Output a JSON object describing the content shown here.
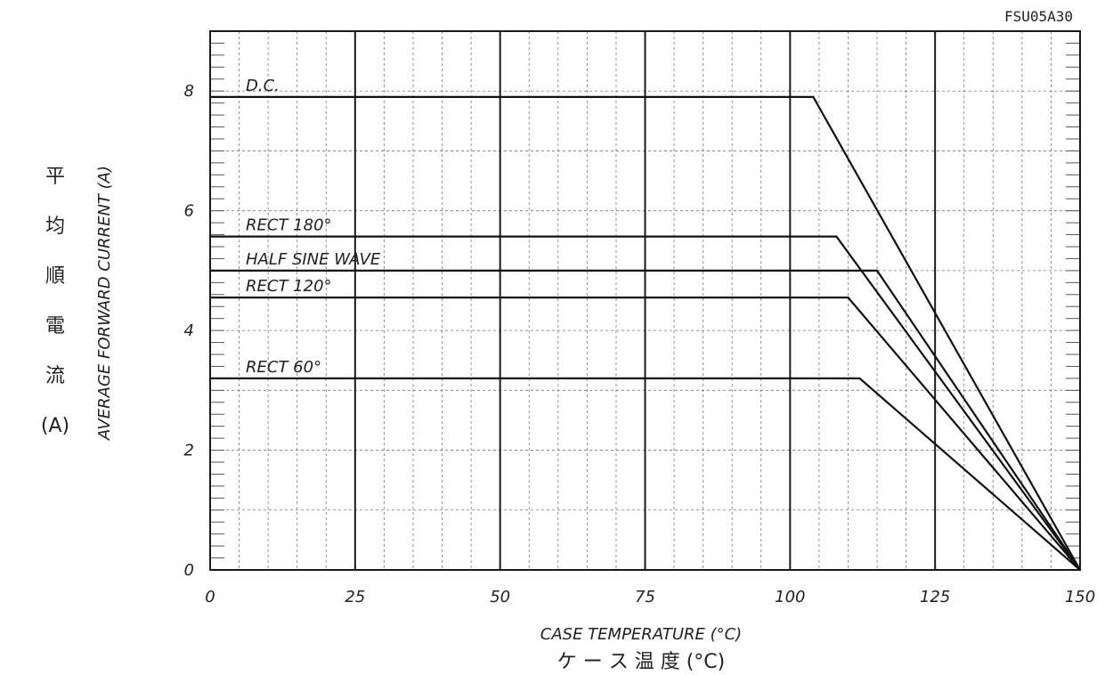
{
  "chart_data": {
    "type": "line",
    "title": "FSU05A30",
    "xlabel": "CASE TEMPERATURE (°C)",
    "xlabel_jp": "ケ ー ス 温 度 (°C)",
    "ylabel": "AVERAGE FORWARD CURRENT (A)",
    "ylabel_jp": [
      "平",
      "均",
      "順",
      "電",
      "流",
      "(A)"
    ],
    "xlim": [
      0,
      150
    ],
    "ylim": [
      0,
      9
    ],
    "xticks": [
      0,
      25,
      50,
      75,
      100,
      125,
      150
    ],
    "yticks": [
      0,
      2,
      4,
      6,
      8
    ],
    "grid": true,
    "series": [
      {
        "name": "D.C.",
        "x": [
          0,
          104,
          150
        ],
        "y": [
          7.9,
          7.9,
          0
        ]
      },
      {
        "name": "RECT 180°",
        "x": [
          0,
          108,
          150
        ],
        "y": [
          5.57,
          5.57,
          0
        ]
      },
      {
        "name": "HALF SINE WAVE",
        "x": [
          0,
          115,
          150
        ],
        "y": [
          5.0,
          5.0,
          0
        ]
      },
      {
        "name": "RECT 120°",
        "x": [
          0,
          110,
          150
        ],
        "y": [
          4.55,
          4.55,
          0
        ]
      },
      {
        "name": "RECT 60°",
        "x": [
          0,
          112,
          150
        ],
        "y": [
          3.2,
          3.2,
          0
        ]
      }
    ]
  }
}
